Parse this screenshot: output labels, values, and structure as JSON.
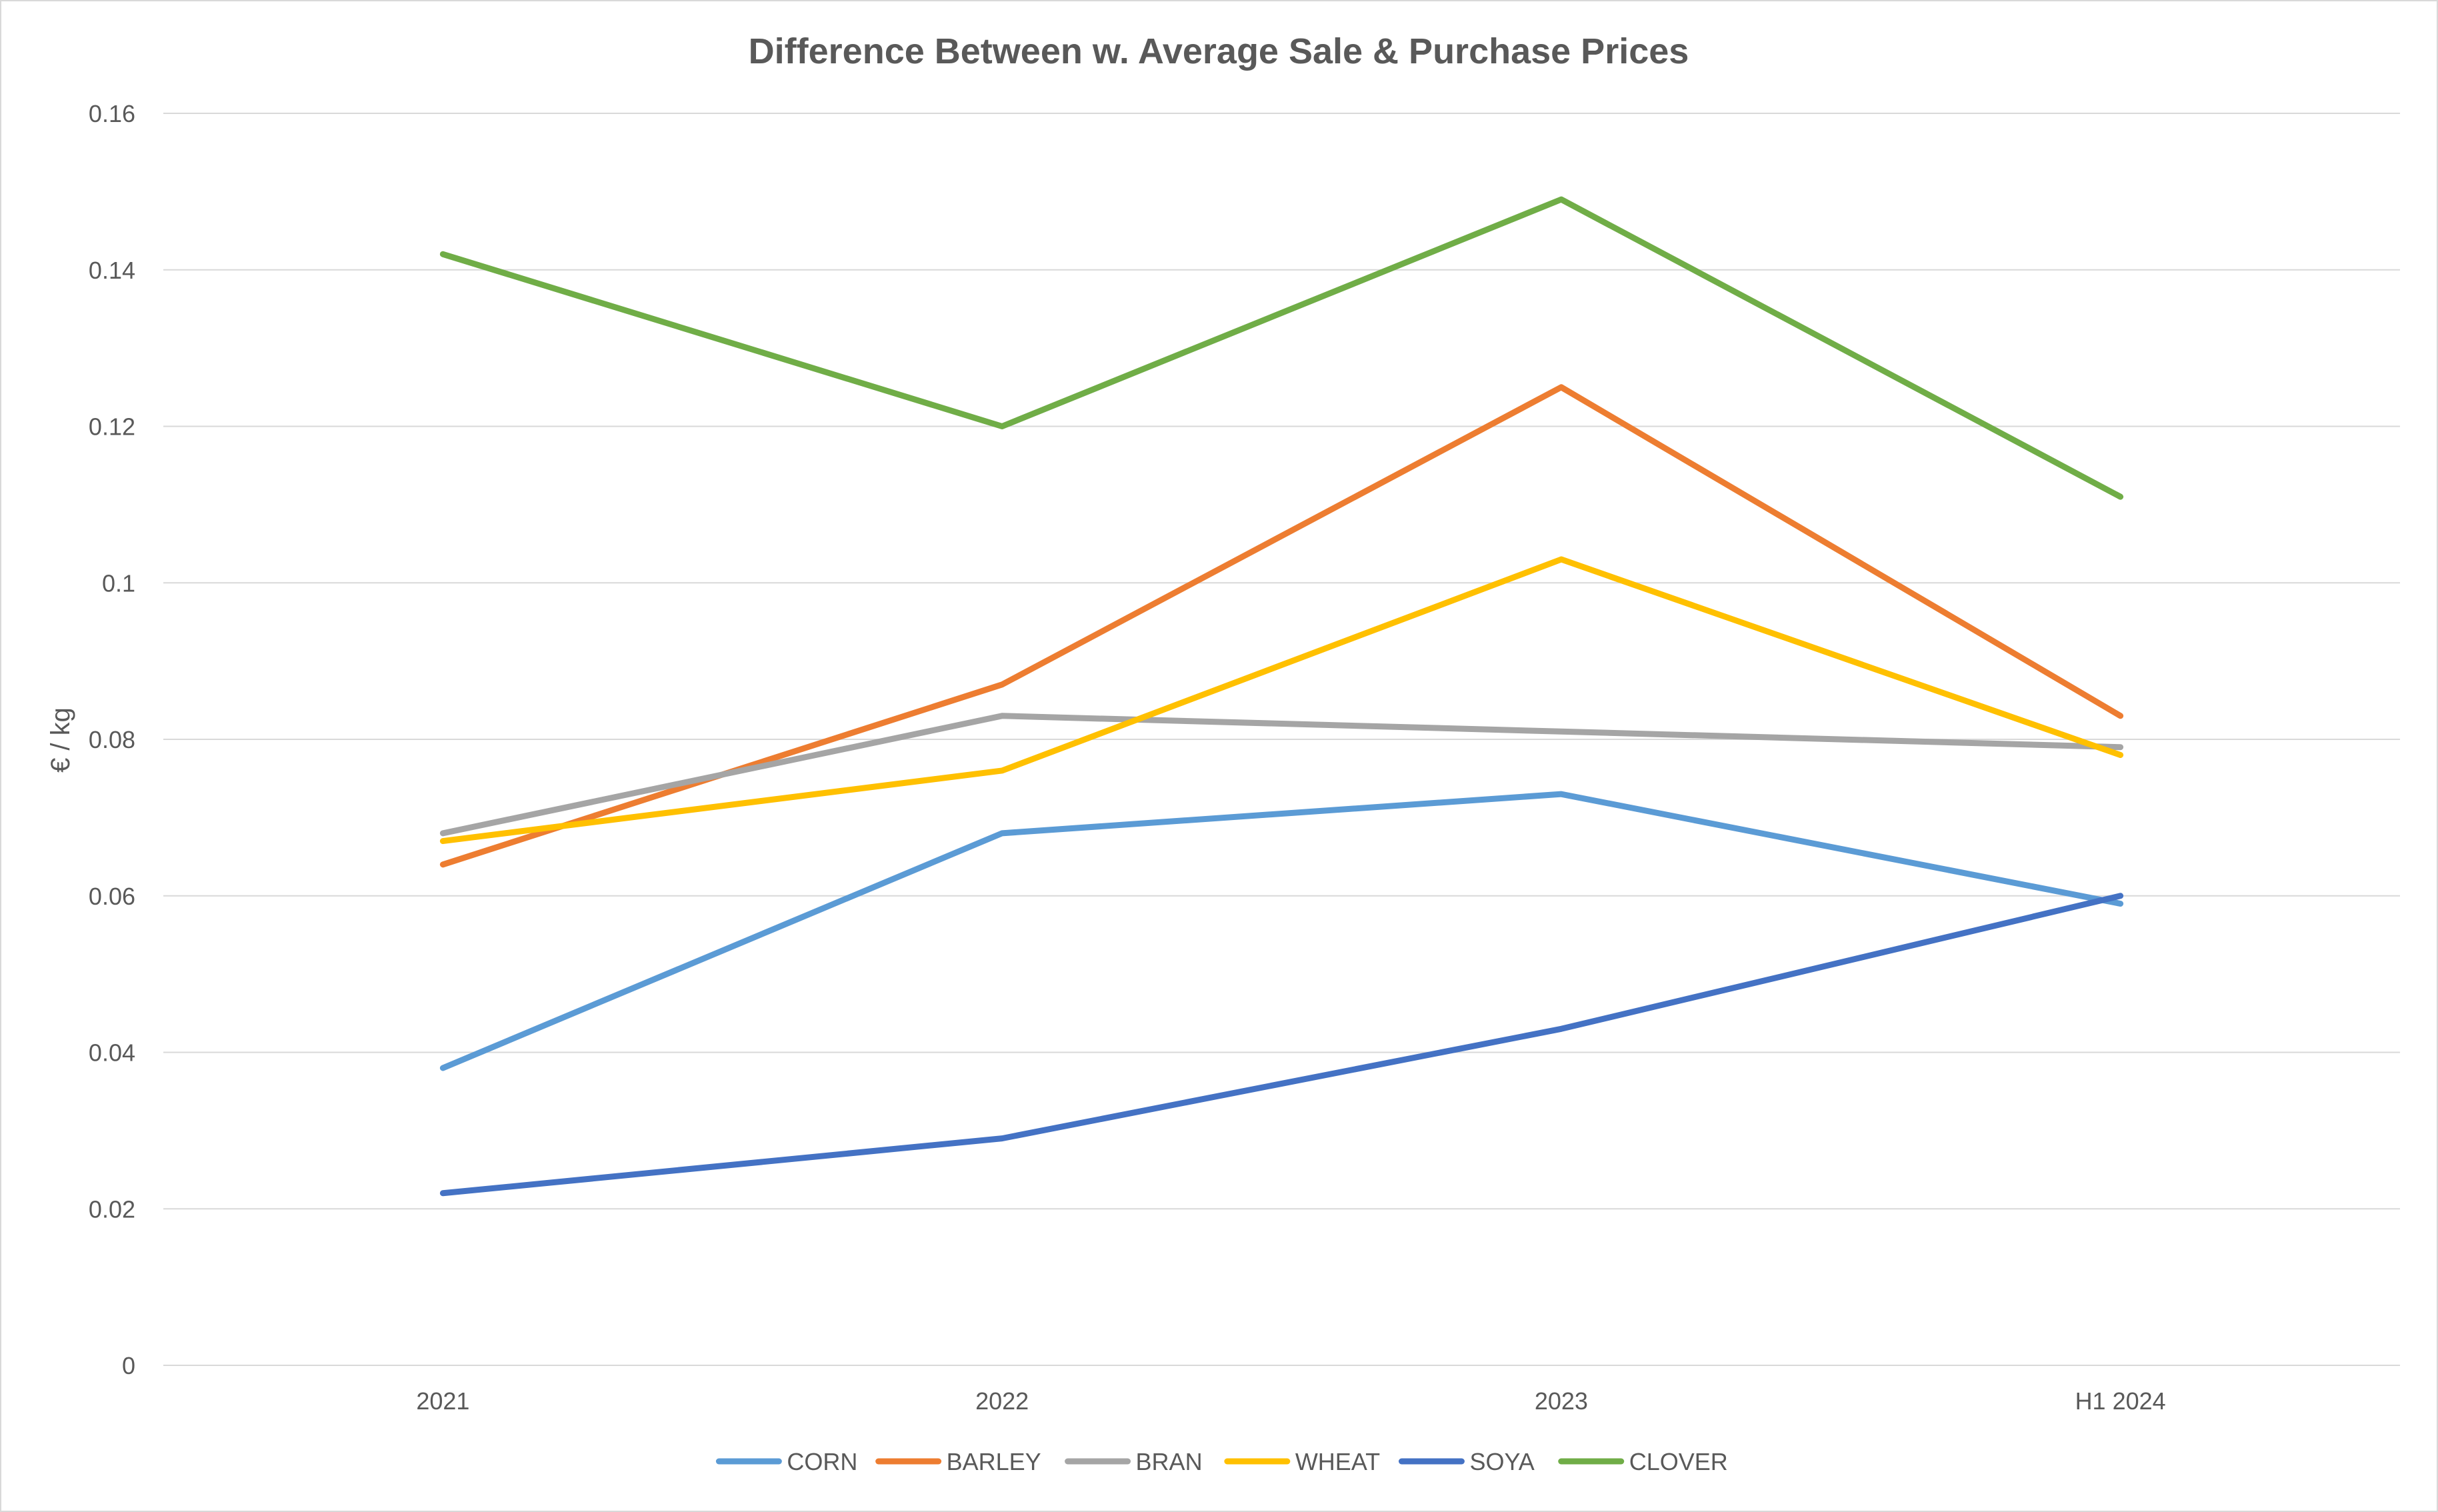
{
  "chart_data": {
    "type": "line",
    "title": "Difference Between w. Average Sale & Purchase Prices",
    "ylabel": "€ / kg",
    "xlabel": "",
    "categories": [
      "2021",
      "2022",
      "2023",
      "H1 2024"
    ],
    "ylim": [
      0,
      0.16
    ],
    "yticks": [
      "0",
      "0.02",
      "0.04",
      "0.06",
      "0.08",
      "0.1",
      "0.12",
      "0.14",
      "0.16"
    ],
    "grid": true,
    "legend_position": "bottom",
    "series": [
      {
        "name": "CORN",
        "color": "#5B9BD5",
        "values": [
          0.038,
          0.068,
          0.073,
          0.059
        ]
      },
      {
        "name": "BARLEY",
        "color": "#ED7D31",
        "values": [
          0.064,
          0.087,
          0.125,
          0.083
        ]
      },
      {
        "name": "BRAN",
        "color": "#A5A5A5",
        "values": [
          0.068,
          0.083,
          0.081,
          0.079
        ]
      },
      {
        "name": "WHEAT",
        "color": "#FFC000",
        "values": [
          0.067,
          0.076,
          0.103,
          0.078
        ]
      },
      {
        "name": "SOYA",
        "color": "#4472C4",
        "values": [
          0.022,
          0.029,
          0.043,
          0.06
        ]
      },
      {
        "name": "CLOVER",
        "color": "#70AD47",
        "values": [
          0.142,
          0.12,
          0.149,
          0.111
        ]
      }
    ]
  }
}
